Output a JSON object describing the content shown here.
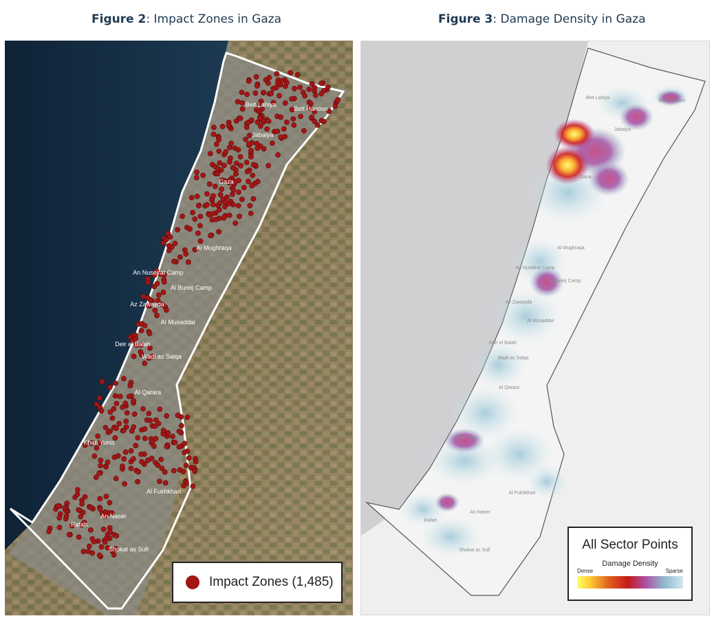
{
  "figure2": {
    "prefix": "Figure 2",
    "caption": ": Impact Zones in Gaza",
    "legend_label": "Impact Zones (1,485)",
    "marker_color": "#a31616",
    "places": [
      "Beit Lahiya",
      "Beit Hanoun",
      "Jabalya",
      "Gaza",
      "Al Mughraqa",
      "An Nuseirat Camp",
      "Al Bureij Camp",
      "Az Zawayda",
      "Al Musaddar",
      "Deir el Balah",
      "Wadi as Salqa",
      "Al Qarara",
      "Khan Yunis",
      "Al Fukhkhari",
      "An Naser",
      "Rafah",
      "Shokat as Sufi"
    ]
  },
  "figure3": {
    "prefix": "Figure 3",
    "caption": ": Damage Density in Gaza",
    "legend_title": "All Sector Points",
    "legend_subtitle": "Damage Density",
    "legend_dense": "Dense",
    "legend_sparse": "Sparse",
    "places": [
      "Beit Lahiya",
      "Beit Hanoun",
      "Jabalya",
      "Gaza",
      "Al Mughraqa",
      "An Nuseirat Camp",
      "Al Bureij Camp",
      "Az Zawayda",
      "Al Musaddar",
      "Deir el Balah",
      "Wadi as Salqa",
      "Al Qarara",
      "Khan Yunis",
      "Al Fukhkhari",
      "An Naser",
      "Rafah",
      "Shokat as Sufi"
    ]
  }
}
